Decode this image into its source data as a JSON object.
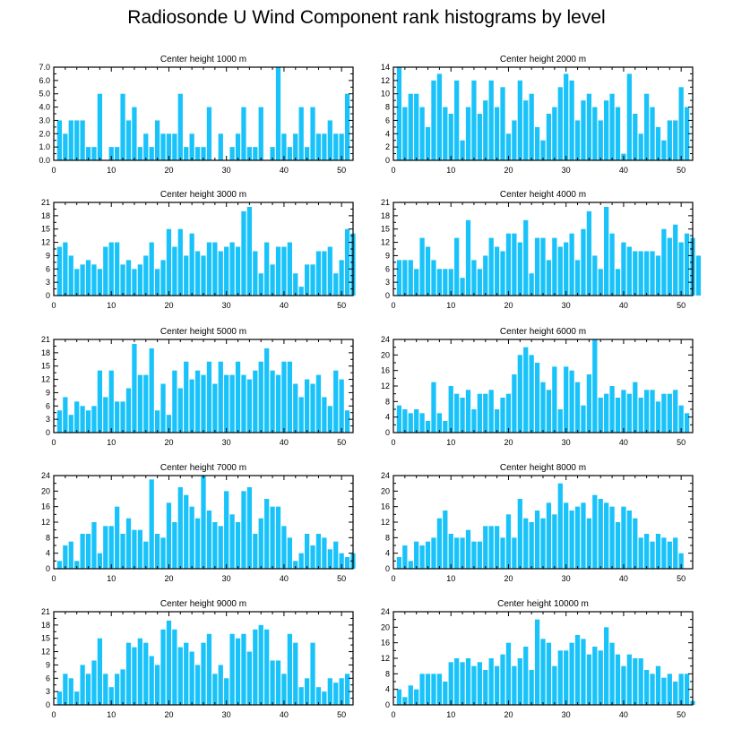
{
  "title": "Radiosonde U Wind Component rank histograms by level",
  "colors": {
    "bar": "#19c3fa",
    "axis": "#000000",
    "text": "#000000"
  },
  "chart_data": [
    {
      "type": "bar",
      "title": "Center height 1000 m",
      "xlim": [
        0,
        52
      ],
      "xticks": [
        0,
        10,
        20,
        30,
        40,
        50
      ],
      "ylim": [
        0,
        7.0
      ],
      "yticks": [
        "0.0",
        "1.0",
        "2.0",
        "3.0",
        "4.0",
        "5.0",
        "6.0",
        "7.0"
      ],
      "ytick_values": [
        0,
        1,
        2,
        3,
        4,
        5,
        6,
        7
      ],
      "values": [
        3,
        2,
        3,
        3,
        3,
        1,
        1,
        5,
        0,
        1,
        1,
        5,
        3,
        4,
        1,
        2,
        1,
        3,
        2,
        2,
        2,
        5,
        1,
        2,
        1,
        1,
        4,
        0,
        2,
        0,
        1,
        2,
        4,
        1,
        1,
        4,
        0,
        1,
        7,
        2,
        1,
        2,
        4,
        1,
        4,
        2,
        2,
        3,
        2,
        2,
        5
      ]
    },
    {
      "type": "bar",
      "title": "Center height 2000 m",
      "xlim": [
        0,
        52
      ],
      "xticks": [
        0,
        10,
        20,
        30,
        40,
        50
      ],
      "ylim": [
        0,
        14
      ],
      "yticks": [
        "0",
        "2",
        "4",
        "6",
        "8",
        "10",
        "12",
        "14"
      ],
      "ytick_values": [
        0,
        2,
        4,
        6,
        8,
        10,
        12,
        14
      ],
      "values": [
        14,
        8,
        10,
        10,
        8,
        5,
        12,
        13,
        8,
        7,
        12,
        3,
        8,
        12,
        7,
        9,
        12,
        8,
        11,
        4,
        6,
        12,
        9,
        10,
        5,
        3,
        7,
        8,
        11,
        13,
        12,
        6,
        9,
        10,
        8,
        6,
        9,
        10,
        8,
        1,
        13,
        7,
        4,
        10,
        8,
        5,
        3,
        6,
        6,
        11,
        8
      ]
    },
    {
      "type": "bar",
      "title": "Center height 3000 m",
      "xlim": [
        0,
        52
      ],
      "xticks": [
        0,
        10,
        20,
        30,
        40,
        50
      ],
      "ylim": [
        0,
        21
      ],
      "yticks": [
        "0",
        "3",
        "6",
        "9",
        "12",
        "15",
        "18",
        "21"
      ],
      "ytick_values": [
        0,
        3,
        6,
        9,
        12,
        15,
        18,
        21
      ],
      "values": [
        11,
        12,
        9,
        6,
        7,
        8,
        7,
        6,
        11,
        12,
        12,
        7,
        8,
        6,
        7,
        9,
        12,
        6,
        8,
        15,
        11,
        15,
        9,
        14,
        10,
        9,
        12,
        12,
        10,
        11,
        12,
        11,
        19,
        20,
        10,
        5,
        12,
        7,
        11,
        11,
        12,
        5,
        2,
        7,
        7,
        10,
        10,
        11,
        5,
        8,
        15,
        14
      ]
    },
    {
      "type": "bar",
      "title": "Center height 4000 m",
      "xlim": [
        0,
        52
      ],
      "xticks": [
        0,
        10,
        20,
        30,
        40,
        50
      ],
      "ylim": [
        0,
        21
      ],
      "yticks": [
        "0",
        "3",
        "6",
        "9",
        "12",
        "15",
        "18",
        "21"
      ],
      "ytick_values": [
        0,
        3,
        6,
        9,
        12,
        15,
        18,
        21
      ],
      "values": [
        8,
        8,
        8,
        6,
        13,
        11,
        8,
        6,
        6,
        6,
        13,
        4,
        17,
        8,
        6,
        9,
        13,
        11,
        10,
        14,
        14,
        12,
        17,
        5,
        13,
        13,
        8,
        13,
        11,
        12,
        14,
        8,
        15,
        19,
        9,
        6,
        20,
        14,
        6,
        12,
        11,
        10,
        10,
        10,
        10,
        9,
        15,
        13,
        16,
        12,
        14,
        13,
        9
      ]
    },
    {
      "type": "bar",
      "title": "Center height 5000 m",
      "xlim": [
        0,
        52
      ],
      "xticks": [
        0,
        10,
        20,
        30,
        40,
        50
      ],
      "ylim": [
        0,
        21
      ],
      "yticks": [
        "0",
        "3",
        "6",
        "9",
        "12",
        "15",
        "18",
        "21"
      ],
      "ytick_values": [
        0,
        3,
        6,
        9,
        12,
        15,
        18,
        21
      ],
      "values": [
        5,
        8,
        4,
        7,
        6,
        5,
        6,
        14,
        8,
        14,
        7,
        7,
        10,
        20,
        13,
        13,
        19,
        5,
        11,
        4,
        14,
        10,
        16,
        12,
        14,
        13,
        16,
        11,
        16,
        13,
        13,
        16,
        13,
        12,
        14,
        16,
        19,
        14,
        13,
        16,
        16,
        11,
        8,
        12,
        11,
        13,
        8,
        6,
        14,
        12,
        5
      ]
    },
    {
      "type": "bar",
      "title": "Center height 6000 m",
      "xlim": [
        0,
        52
      ],
      "xticks": [
        0,
        10,
        20,
        30,
        40,
        50
      ],
      "ylim": [
        0,
        24
      ],
      "yticks": [
        "0",
        "4",
        "8",
        "12",
        "16",
        "20",
        "24"
      ],
      "ytick_values": [
        0,
        4,
        8,
        12,
        16,
        20,
        24
      ],
      "values": [
        7,
        6,
        5,
        6,
        5,
        3,
        13,
        5,
        3,
        12,
        10,
        9,
        11,
        6,
        10,
        10,
        11,
        6,
        9,
        10,
        15,
        20,
        22,
        20,
        18,
        13,
        11,
        17,
        6,
        17,
        16,
        13,
        7,
        15,
        24,
        9,
        10,
        12,
        9,
        11,
        10,
        13,
        9,
        11,
        11,
        8,
        10,
        10,
        11,
        7,
        5
      ]
    },
    {
      "type": "bar",
      "title": "Center height 7000 m",
      "xlim": [
        0,
        52
      ],
      "xticks": [
        0,
        10,
        20,
        30,
        40,
        50
      ],
      "ylim": [
        0,
        24
      ],
      "yticks": [
        "0",
        "4",
        "8",
        "12",
        "16",
        "20",
        "24"
      ],
      "ytick_values": [
        0,
        4,
        8,
        12,
        16,
        20,
        24
      ],
      "values": [
        2,
        6,
        7,
        2,
        9,
        9,
        12,
        4,
        11,
        11,
        16,
        9,
        13,
        10,
        10,
        7,
        23,
        9,
        8,
        17,
        12,
        21,
        19,
        16,
        13,
        24,
        15,
        12,
        11,
        20,
        14,
        12,
        20,
        21,
        9,
        13,
        18,
        16,
        16,
        11,
        8,
        2,
        4,
        9,
        6,
        9,
        8,
        5,
        7,
        4,
        3,
        4
      ]
    },
    {
      "type": "bar",
      "title": "Center height 8000 m",
      "xlim": [
        0,
        52
      ],
      "xticks": [
        0,
        10,
        20,
        30,
        40,
        50
      ],
      "ylim": [
        0,
        24
      ],
      "yticks": [
        "0",
        "4",
        "8",
        "12",
        "16",
        "20",
        "24"
      ],
      "ytick_values": [
        0,
        4,
        8,
        12,
        16,
        20,
        24
      ],
      "values": [
        3,
        6,
        2,
        7,
        6,
        7,
        8,
        13,
        15,
        9,
        8,
        8,
        10,
        7,
        7,
        11,
        11,
        11,
        8,
        14,
        8,
        18,
        13,
        12,
        15,
        13,
        17,
        14,
        22,
        17,
        15,
        16,
        17,
        13,
        19,
        18,
        17,
        16,
        12,
        16,
        15,
        13,
        8,
        9,
        7,
        9,
        8,
        7,
        8,
        4
      ]
    },
    {
      "type": "bar",
      "title": "Center height 9000 m",
      "xlim": [
        0,
        52
      ],
      "xticks": [
        0,
        10,
        20,
        30,
        40,
        50
      ],
      "ylim": [
        0,
        21
      ],
      "yticks": [
        "0",
        "3",
        "6",
        "9",
        "12",
        "15",
        "18",
        "21"
      ],
      "ytick_values": [
        0,
        3,
        6,
        9,
        12,
        15,
        18,
        21
      ],
      "values": [
        3,
        7,
        6,
        3,
        9,
        7,
        10,
        15,
        7,
        4,
        7,
        8,
        14,
        13,
        15,
        14,
        11,
        9,
        17,
        19,
        17,
        13,
        14,
        12,
        9,
        14,
        16,
        7,
        9,
        6,
        16,
        15,
        16,
        12,
        17,
        18,
        17,
        10,
        10,
        7,
        16,
        14,
        4,
        6,
        14,
        4,
        3,
        6,
        5,
        6,
        7
      ]
    },
    {
      "type": "bar",
      "title": "Center height 10000 m",
      "xlim": [
        0,
        52
      ],
      "xticks": [
        0,
        10,
        20,
        30,
        40,
        50
      ],
      "ylim": [
        0,
        24
      ],
      "yticks": [
        "0",
        "4",
        "8",
        "12",
        "16",
        "20",
        "24"
      ],
      "ytick_values": [
        0,
        4,
        8,
        12,
        16,
        20,
        24
      ],
      "values": [
        4,
        2,
        5,
        4,
        8,
        8,
        8,
        8,
        6,
        11,
        12,
        11,
        12,
        10,
        11,
        9,
        12,
        10,
        13,
        16,
        10,
        12,
        15,
        9,
        22,
        17,
        16,
        10,
        14,
        14,
        16,
        18,
        17,
        13,
        15,
        14,
        20,
        16,
        13,
        10,
        13,
        12,
        12,
        9,
        8,
        10,
        7,
        8,
        6,
        8,
        8,
        1
      ]
    }
  ]
}
